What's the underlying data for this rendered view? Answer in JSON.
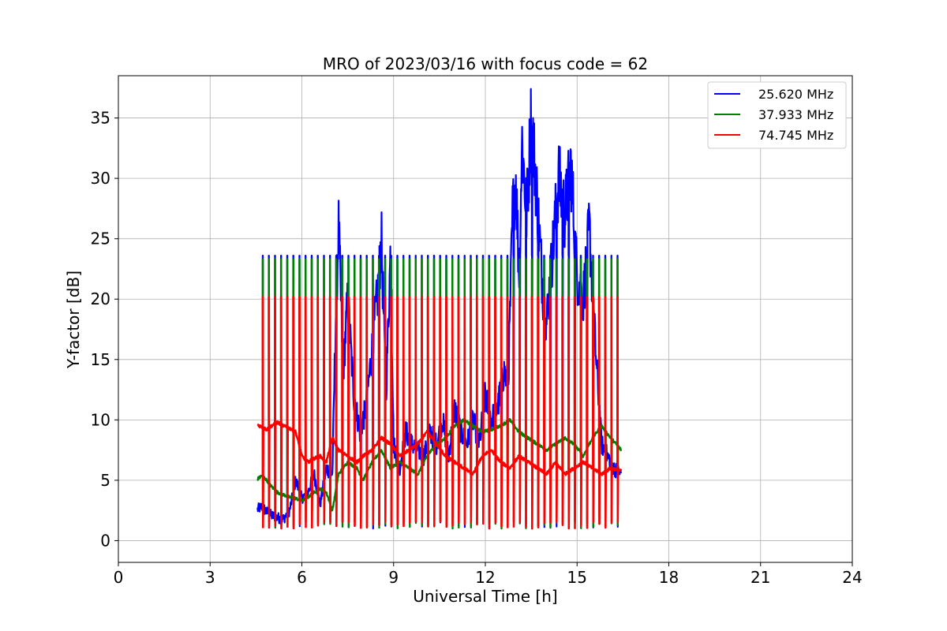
{
  "chart_data": {
    "type": "line",
    "title": "MRO of 2023/03/16 with focus code = 62",
    "xlabel": "Universal Time [h]",
    "ylabel": "Y-factor [dB]",
    "xlim": [
      0,
      24
    ],
    "ylim": [
      -1.8,
      38.5
    ],
    "xticks": [
      0,
      3,
      6,
      9,
      12,
      15,
      18,
      21,
      24
    ],
    "yticks": [
      0,
      5,
      10,
      15,
      20,
      25,
      30,
      35
    ],
    "grid": true,
    "legend_position": "top-right",
    "calibration_spikes": {
      "start": 4.72,
      "end": 16.45,
      "interval": 0.2,
      "levels": {
        "25.620 MHz": 23.6,
        "37.933 MHz": 23.3,
        "74.745 MHz": 20.2
      }
    },
    "series": [
      {
        "name": "25.620 MHz",
        "color": "#0000ff",
        "x": [
          4.55,
          4.7,
          4.85,
          5.0,
          5.2,
          5.4,
          5.6,
          5.8,
          6.0,
          6.2,
          6.4,
          6.6,
          6.8,
          7.0,
          7.1,
          7.2,
          7.35,
          7.5,
          7.7,
          7.9,
          8.1,
          8.3,
          8.5,
          8.6,
          8.75,
          8.9,
          9.0,
          9.2,
          9.4,
          9.6,
          9.8,
          10.0,
          10.2,
          10.4,
          10.6,
          10.8,
          11.0,
          11.2,
          11.4,
          11.6,
          11.8,
          12.0,
          12.2,
          12.4,
          12.6,
          12.75,
          12.9,
          13.0,
          13.1,
          13.2,
          13.35,
          13.5,
          13.65,
          13.8,
          13.9,
          14.0,
          14.2,
          14.4,
          14.6,
          14.8,
          15.0,
          15.2,
          15.4,
          15.6,
          15.8,
          16.0,
          16.2,
          16.45
        ],
        "values": [
          2.6,
          2.8,
          2.4,
          2.1,
          1.9,
          1.8,
          2.5,
          5.0,
          3.5,
          4.0,
          5.5,
          3.0,
          6.0,
          5.5,
          18.0,
          26.0,
          14.0,
          20.0,
          12.0,
          9.0,
          11.0,
          16.0,
          21.0,
          25.0,
          12.0,
          24.0,
          8.0,
          6.0,
          9.0,
          8.0,
          7.5,
          7.0,
          9.0,
          8.0,
          10.0,
          7.0,
          11.0,
          9.0,
          8.0,
          10.0,
          8.0,
          12.0,
          10.0,
          11.0,
          14.0,
          13.0,
          28.0,
          30.0,
          22.0,
          33.0,
          27.0,
          35.0,
          30.0,
          24.0,
          20.0,
          18.0,
          24.0,
          30.0,
          27.0,
          31.0,
          22.0,
          20.0,
          26.0,
          16.0,
          8.0,
          7.0,
          6.0,
          5.5
        ]
      },
      {
        "name": "37.933 MHz",
        "color": "#008000",
        "x": [
          4.55,
          4.7,
          4.85,
          5.0,
          5.2,
          5.4,
          5.6,
          5.8,
          6.0,
          6.2,
          6.4,
          6.6,
          6.8,
          7.0,
          7.2,
          7.5,
          7.8,
          8.0,
          8.3,
          8.6,
          8.9,
          9.2,
          9.5,
          9.8,
          10.1,
          10.4,
          10.7,
          11.0,
          11.3,
          11.6,
          11.9,
          12.2,
          12.5,
          12.8,
          13.1,
          13.4,
          13.7,
          14.0,
          14.3,
          14.6,
          14.9,
          15.2,
          15.5,
          15.8,
          16.1,
          16.45
        ],
        "values": [
          5.1,
          5.4,
          5.0,
          4.5,
          4.0,
          3.8,
          3.6,
          3.5,
          3.3,
          3.6,
          4.0,
          4.3,
          4.0,
          2.5,
          5.5,
          6.5,
          6.0,
          5.0,
          6.5,
          7.5,
          6.0,
          6.5,
          6.0,
          5.5,
          7.0,
          8.0,
          8.5,
          9.5,
          10.0,
          9.5,
          9.0,
          9.2,
          9.5,
          10.0,
          9.0,
          8.5,
          8.0,
          7.5,
          8.0,
          8.5,
          8.0,
          7.0,
          8.5,
          9.5,
          8.5,
          7.5
        ]
      },
      {
        "name": "74.745 MHz",
        "color": "#ff0000",
        "x": [
          4.55,
          4.7,
          4.85,
          5.0,
          5.2,
          5.4,
          5.6,
          5.8,
          6.0,
          6.2,
          6.4,
          6.6,
          6.8,
          7.0,
          7.2,
          7.5,
          7.8,
          8.0,
          8.3,
          8.6,
          8.9,
          9.2,
          9.5,
          9.8,
          10.1,
          10.4,
          10.7,
          11.0,
          11.3,
          11.6,
          11.9,
          12.2,
          12.5,
          12.8,
          13.1,
          13.4,
          13.7,
          14.0,
          14.3,
          14.6,
          14.9,
          15.2,
          15.5,
          15.8,
          16.1,
          16.45
        ],
        "values": [
          9.6,
          9.4,
          9.2,
          9.5,
          9.8,
          9.5,
          9.3,
          9.0,
          7.0,
          6.5,
          6.8,
          7.0,
          6.5,
          8.5,
          7.5,
          7.0,
          6.5,
          7.0,
          7.5,
          8.5,
          8.0,
          7.0,
          7.5,
          8.0,
          9.0,
          8.0,
          7.0,
          6.5,
          6.0,
          5.5,
          7.0,
          7.5,
          6.5,
          6.0,
          7.0,
          6.5,
          6.0,
          5.5,
          6.5,
          5.5,
          6.0,
          6.5,
          6.0,
          5.5,
          6.0,
          5.8
        ]
      }
    ]
  }
}
